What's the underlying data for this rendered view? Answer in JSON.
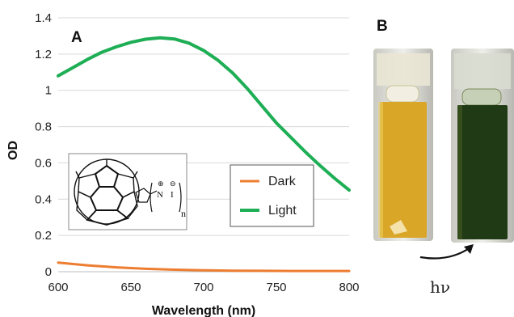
{
  "chart_data": {
    "type": "line",
    "panel_label": "A",
    "xlabel": "Wavelength (nm)",
    "ylabel": "OD",
    "xlim": [
      600,
      800
    ],
    "ylim": [
      0,
      1.4
    ],
    "x_ticks": [
      "600",
      "650",
      "700",
      "750",
      "800"
    ],
    "y_ticks": [
      "0",
      "0.2",
      "0.4",
      "0.6",
      "0.8",
      "1",
      "1.2",
      "1.4"
    ],
    "grid": "horizontal",
    "legend_position": "center-right",
    "series": [
      {
        "name": "Dark",
        "color": "#ED7D31",
        "x": [
          600,
          620,
          640,
          660,
          680,
          700,
          720,
          740,
          760,
          780,
          800
        ],
        "y": [
          0.05,
          0.035,
          0.024,
          0.016,
          0.011,
          0.008,
          0.006,
          0.005,
          0.004,
          0.004,
          0.004
        ]
      },
      {
        "name": "Light",
        "color": "#1EAE55",
        "x": [
          600,
          610,
          620,
          630,
          640,
          650,
          660,
          670,
          680,
          690,
          700,
          710,
          720,
          730,
          740,
          750,
          760,
          770,
          780,
          790,
          800
        ],
        "y": [
          1.08,
          1.125,
          1.17,
          1.21,
          1.24,
          1.265,
          1.282,
          1.29,
          1.283,
          1.26,
          1.22,
          1.165,
          1.095,
          1.01,
          0.915,
          0.82,
          0.74,
          0.66,
          0.585,
          0.515,
          0.45
        ]
      }
    ],
    "inset": {
      "structure": "fullerene",
      "charge_symbol_1": "⊕",
      "charge_symbol_2": "⊖",
      "atom_n": "N",
      "atom_i": "I",
      "subscript": "n"
    }
  },
  "photo_panel": {
    "panel_label": "B",
    "arrow_label": "hν",
    "before_color": "#D9A628",
    "after_color": "#1F3A14"
  }
}
